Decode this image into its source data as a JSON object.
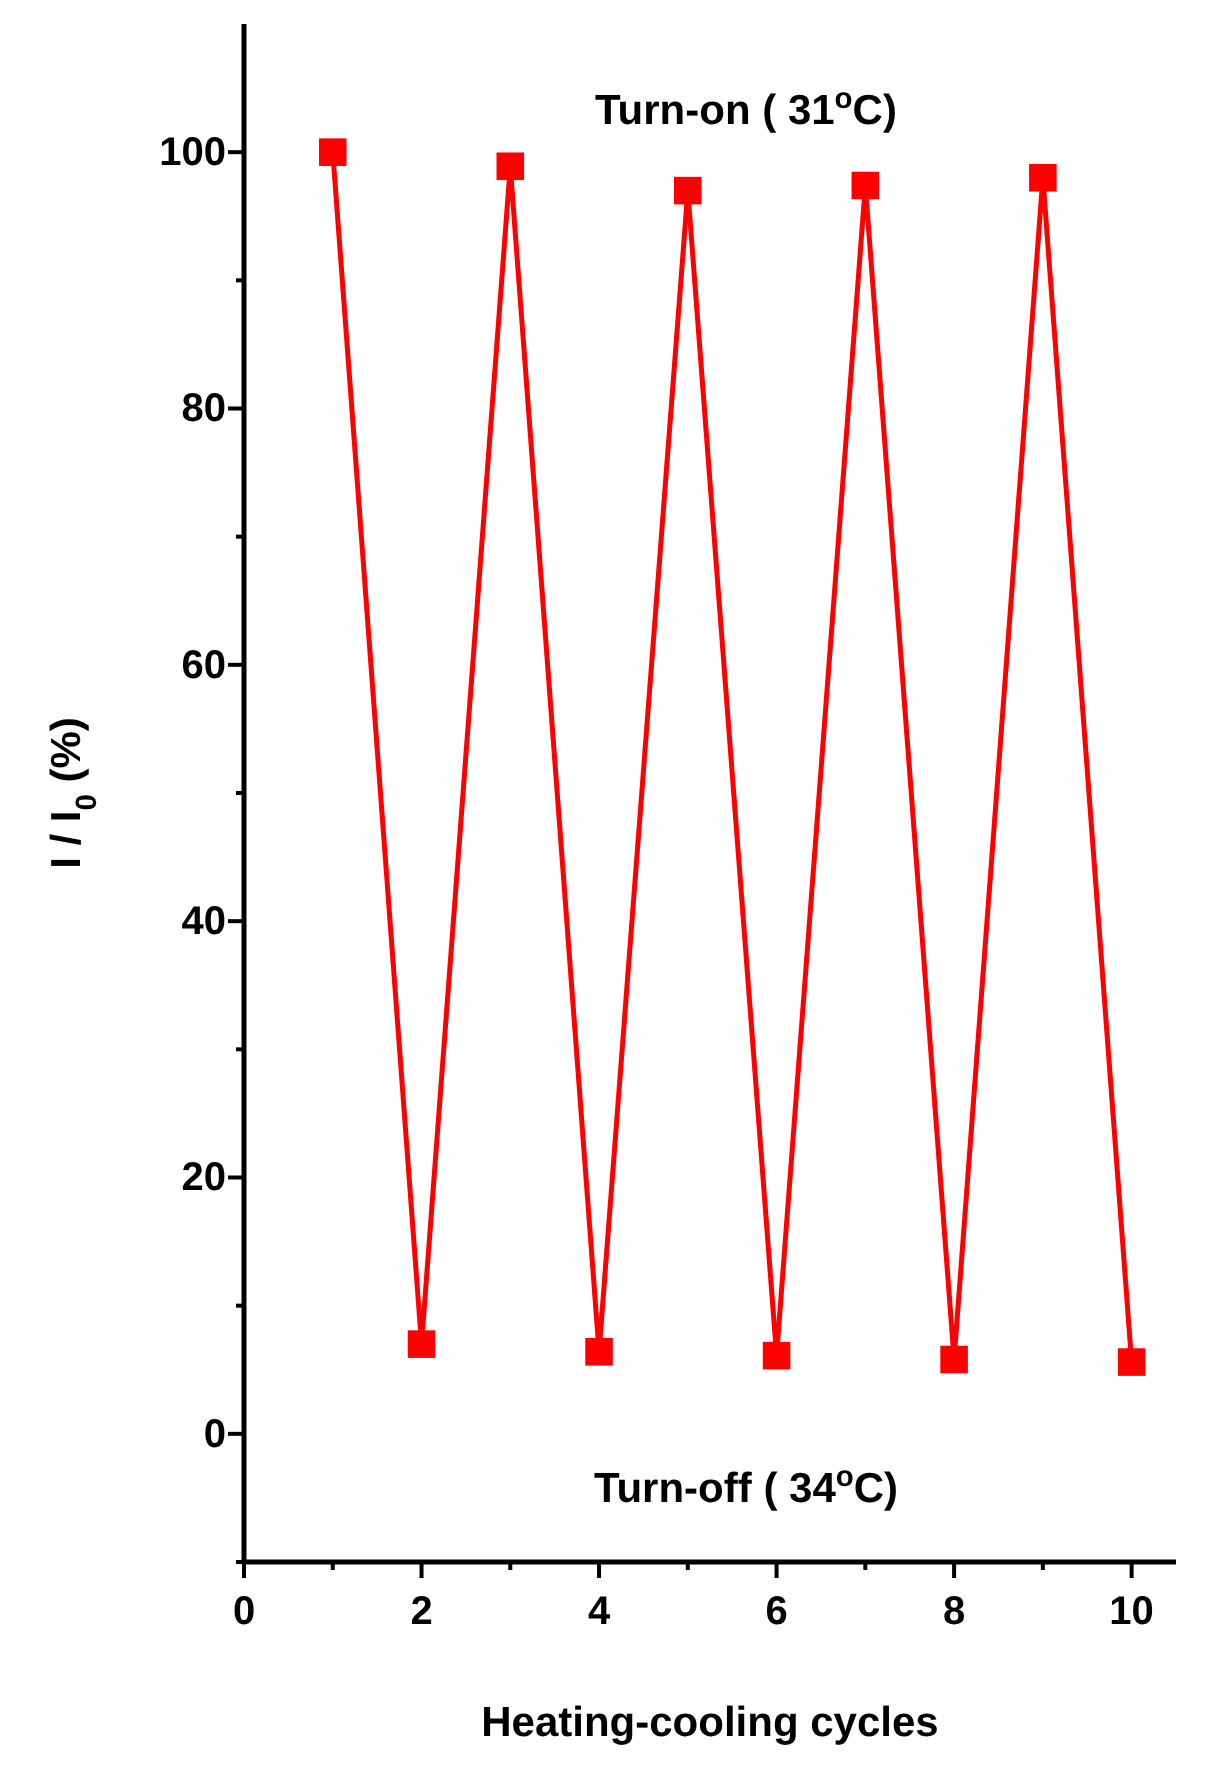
{
  "chart_data": {
    "type": "line",
    "xlabel": "Heating-cooling cycles",
    "ylabel": "I / I$_{0}$ (%)",
    "annotations": [
      "Turn-on ( 31$^{o}$C)",
      "Turn-off ( 34$^{o}$C)"
    ],
    "x": [
      1,
      2,
      3,
      4,
      5,
      6,
      7,
      8,
      9,
      10
    ],
    "series": [
      {
        "color": "#ff0000",
        "values": [
          100,
          7.0,
          98.9,
          6.4,
          97.0,
          6.1,
          97.4,
          5.8,
          98.0,
          5.6
        ]
      }
    ],
    "xlim": [
      0,
      10.5
    ],
    "xticks": [
      0,
      {
        "value": 1,
        "label": null
      },
      2,
      {
        "value": 3,
        "label": null
      },
      4,
      {
        "value": 5,
        "label": null
      },
      6,
      {
        "value": 7,
        "label": null
      },
      8,
      {
        "value": 9,
        "label": null
      },
      10
    ],
    "ylim": [
      -10,
      110
    ],
    "yticks": [
      {
        "value": -10,
        "label": null
      },
      0,
      {
        "value": 10,
        "label": null
      },
      20,
      {
        "value": 30,
        "label": null
      },
      40,
      {
        "value": 50,
        "label": null
      },
      60,
      {
        "value": 70,
        "label": null
      },
      80,
      {
        "value": 90,
        "label": null
      },
      100
    ],
    "marker": "square",
    "line_style": "solid"
  }
}
